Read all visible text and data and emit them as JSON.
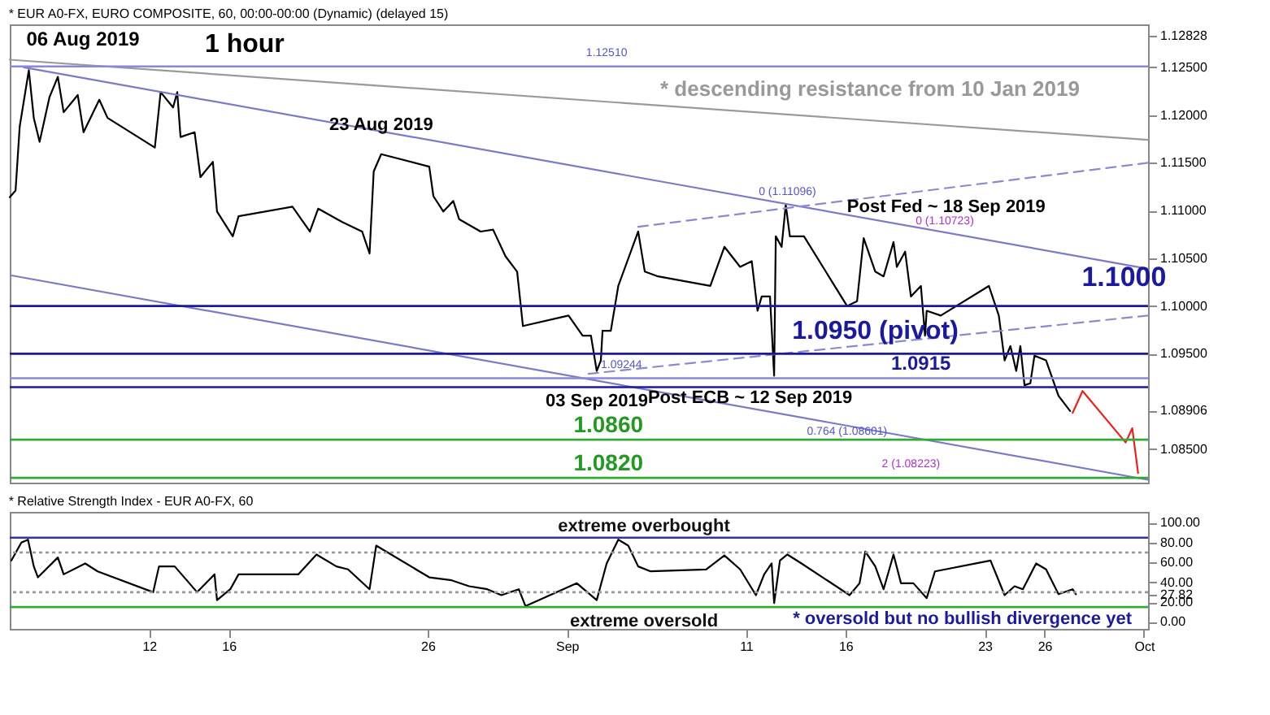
{
  "chart_data": [
    {
      "type": "line",
      "title": "* EUR A0-FX, EURO COMPOSITE, 60, 00:00-00:00 (Dynamic) (delayed 15)",
      "xlim": [
        "2019-08-05T00:00",
        "2019-10-01T05:00"
      ],
      "ylim": [
        1.0815,
        1.1295
      ],
      "yticks": [
        {
          "value": 1.085,
          "label": "1.08500"
        },
        {
          "value": 1.08906,
          "label": "1.08906"
        },
        {
          "value": 1.095,
          "label": "1.09500"
        },
        {
          "value": 1.1,
          "label": "1.10000"
        },
        {
          "value": 1.105,
          "label": "1.10500"
        },
        {
          "value": 1.11,
          "label": "1.11000"
        },
        {
          "value": 1.115,
          "label": "1.11500"
        },
        {
          "value": 1.12,
          "label": "1.12000"
        },
        {
          "value": 1.125,
          "label": "1.12500"
        },
        {
          "value": 1.12828,
          "label": "1.12828"
        }
      ],
      "tick_labels": "y",
      "marker": "none",
      "grid": false,
      "series": [
        {
          "color": "#000000",
          "line_style": "solid",
          "x": [
            "2019-08-05T00:00",
            "2019-08-05T07:00",
            "2019-08-05T12:00",
            "2019-08-05T23:00",
            "2019-08-06T05:00",
            "2019-08-06T12:00",
            "2019-08-07T00:00",
            "2019-08-07T10:00",
            "2019-08-07T17:00",
            "2019-08-08T10:00",
            "2019-08-08T17:00",
            "2019-08-09T12:00",
            "2019-08-09T22:00",
            "2019-08-12T07:00",
            "2019-08-12T14:00",
            "2019-08-13T05:00",
            "2019-08-13T10:00",
            "2019-08-13T14:00",
            "2019-08-14T07:00",
            "2019-08-14T14:00",
            "2019-08-15T05:00",
            "2019-08-15T10:00",
            "2019-08-16T05:00",
            "2019-08-16T12:00",
            "2019-08-19T05:00",
            "2019-08-20T02:00",
            "2019-08-20T12:00",
            "2019-08-21T17:00",
            "2019-08-22T17:00",
            "2019-08-23T02:00",
            "2019-08-23T07:00",
            "2019-08-23T16:00",
            "2019-08-26T02:00",
            "2019-08-26T07:00",
            "2019-08-26T19:00",
            "2019-08-27T07:00",
            "2019-08-27T14:00",
            "2019-08-28T16:00",
            "2019-08-29T07:00",
            "2019-08-29T22:00",
            "2019-08-30T12:00",
            "2019-08-30T19:00",
            "2019-09-02T02:00",
            "2019-09-02T19:00",
            "2019-09-03T05:00",
            "2019-09-03T12:00",
            "2019-09-03T17:00",
            "2019-09-03T19:00",
            "2019-09-04T05:00",
            "2019-09-04T14:00",
            "2019-09-05T14:00",
            "2019-09-05T22:00",
            "2019-09-06T14:00",
            "2019-09-09T05:00",
            "2019-09-09T22:00",
            "2019-09-10T17:00",
            "2019-09-11T07:00",
            "2019-09-11T14:00",
            "2019-09-11T19:00",
            "2019-09-12T05:00",
            "2019-09-12T10:00",
            "2019-09-12T12:00",
            "2019-09-12T19:00",
            "2019-09-13T00:00",
            "2019-09-13T05:00",
            "2019-09-13T22:00",
            "2019-09-16T02:00",
            "2019-09-16T14:00",
            "2019-09-16T22:00",
            "2019-09-17T12:00",
            "2019-09-17T22:00",
            "2019-09-18T10:00",
            "2019-09-18T14:00",
            "2019-09-19T00:00",
            "2019-09-19T07:00",
            "2019-09-19T19:00",
            "2019-09-20T00:00",
            "2019-09-20T02:00",
            "2019-09-20T19:00",
            "2019-09-23T05:00",
            "2019-09-23T17:00",
            "2019-09-24T00:00",
            "2019-09-24T07:00",
            "2019-09-24T14:00",
            "2019-09-24T19:00",
            "2019-09-25T00:00",
            "2019-09-25T07:00",
            "2019-09-25T12:00",
            "2019-09-26T02:00",
            "2019-09-26T17:00",
            "2019-09-27T07:00"
          ],
          "values": [
            1.1114,
            1.1121,
            1.1188,
            1.1247,
            1.1197,
            1.1172,
            1.1219,
            1.124,
            1.1203,
            1.1221,
            1.1182,
            1.1216,
            1.1197,
            1.1166,
            1.1224,
            1.1208,
            1.1224,
            1.1177,
            1.1182,
            1.1135,
            1.1151,
            1.1099,
            1.1073,
            1.1094,
            1.1104,
            1.1078,
            1.1102,
            1.1088,
            1.1078,
            1.1055,
            1.1141,
            1.1159,
            1.1146,
            1.1115,
            1.1099,
            1.111,
            1.1091,
            1.1078,
            1.108,
            1.1052,
            1.1036,
            1.0979,
            1.099,
            1.0969,
            1.0969,
            1.0932,
            1.0943,
            1.0974,
            1.0974,
            1.1021,
            1.1078,
            1.1036,
            1.1031,
            1.1021,
            1.1062,
            1.1041,
            1.1047,
            1.0995,
            1.101,
            1.101,
            1.0927,
            1.1073,
            1.1062,
            1.1106,
            1.1073,
            1.1073,
            1.1,
            1.1005,
            1.1071,
            1.1036,
            1.1031,
            1.1067,
            1.1041,
            1.1057,
            1.101,
            1.1021,
            1.0969,
            1.0995,
            1.099,
            1.1021,
            1.099,
            1.0943,
            1.0958,
            1.0932,
            1.0958,
            1.0917,
            1.0919,
            1.0948,
            1.0943,
            1.0906,
            1.089
          ]
        },
        {
          "color": "#e8231f",
          "line_style": "solid",
          "x": [
            "2019-09-27T10:00",
            "2019-09-27T22:00",
            "2019-09-30T02:00",
            "2019-09-30T10:00",
            "2019-09-30T17:00"
          ],
          "values": [
            1.0888,
            1.0911,
            1.0857,
            1.0872,
            1.0825
          ]
        },
        {
          "color": "#9a9a9a",
          "line_style": "solid",
          "x": [
            "2019-08-05T00:00",
            "2019-10-01T05:00"
          ],
          "values": [
            1.1258,
            1.1174
          ]
        },
        {
          "color": "#7a7ac8",
          "line_style": "solid",
          "x": [
            "2019-08-05T17:00",
            "2019-10-01T05:00"
          ],
          "values": [
            1.125,
            1.1039
          ]
        },
        {
          "color": "#7a7ac8",
          "line_style": "solid",
          "x": [
            "2019-08-05T02:00",
            "2019-10-01T05:00"
          ],
          "values": [
            1.1032,
            1.0818
          ]
        },
        {
          "color": "#8a8ad0",
          "line_style": "dashed",
          "x": [
            "2019-09-03T02:00",
            "2019-10-01T05:00"
          ],
          "values": [
            1.0929,
            1.099
          ]
        },
        {
          "color": "#8a8ad0",
          "line_style": "dashed",
          "x": [
            "2019-09-05T14:00",
            "2019-10-01T05:00"
          ],
          "values": [
            1.1083,
            1.115
          ]
        }
      ],
      "ref_lines": [
        {
          "axis": "y",
          "value": 1.1,
          "color": "#1a1aa0"
        },
        {
          "axis": "y",
          "value": 1.095,
          "color": "#1a1aa0"
        },
        {
          "axis": "y",
          "value": 1.0915,
          "color": "#1a1aa0"
        },
        {
          "axis": "y",
          "value": 1.086,
          "color": "#33aa33"
        },
        {
          "axis": "y",
          "value": 1.082,
          "color": "#33aa33"
        },
        {
          "axis": "y",
          "value": 1.1251,
          "color": "#8888dd"
        },
        {
          "axis": "y",
          "value": 1.09244,
          "color": "#8888dd"
        }
      ],
      "annotations": [
        "06 Aug 2019",
        "1 hour",
        "* descending resistance from 10 Jan 2019",
        {
          "text": "23 Aug 2019",
          "x": "2019-08-23T16:00",
          "y": 1.1174
        },
        {
          "text": "03 Sep 2019",
          "x": "2019-09-03T12:00",
          "y": 1.0914
        },
        {
          "text": "Post Fed ~ 18 Sep 2019",
          "x": "2019-09-16T02:00",
          "y": 1.109
        },
        {
          "text": "Post ECB ~ 12 Sep 2019",
          "x": "2019-09-11T05:00",
          "y": 1.0924
        },
        {
          "text": "1.1000",
          "x": "2019-09-30T00:00",
          "y": 1.1004
        },
        {
          "text": "1.0950 (pivot)",
          "x": "2019-09-17T12:00",
          "y": 1.0954
        },
        {
          "text": "1.0915",
          "x": "2019-09-19T19:00",
          "y": 1.0921
        },
        {
          "text": "1.0860",
          "x": "2019-09-04T02:00",
          "y": 1.0861
        },
        {
          "text": "1.0820",
          "x": "2019-09-04T02:00",
          "y": 1.0821
        },
        {
          "text": "0 (1.11096)",
          "x": "2019-09-13T02:00",
          "y": 1.1111
        },
        "0 (1.10723)",
        {
          "text": "0.764 (1.08601)",
          "x": "2019-09-16T02:00",
          "y": 1.086
        },
        {
          "text": "2 (1.08223)",
          "x": "2019-09-19T07:00",
          "y": 1.0826
        },
        {
          "text": "1.12510",
          "x": "2019-09-04T00:00",
          "y": 1.1255
        },
        {
          "text": "1.09244",
          "x": "2019-09-03T17:00",
          "y": 1.0928
        }
      ]
    },
    {
      "type": "line",
      "title": "* Relative Strength Index - EUR A0-FX, 60",
      "xlim": [
        "2019-08-05T00:00",
        "2019-10-01T05:00"
      ],
      "ylim": [
        -7,
        111
      ],
      "xticks": [
        {
          "value": "2019-08-12",
          "label": "12"
        },
        {
          "value": "2019-08-16",
          "label": "16"
        },
        {
          "value": "2019-08-26",
          "label": "26"
        },
        {
          "value": "2019-09-02",
          "label": "Sep"
        },
        {
          "value": "2019-09-11",
          "label": "11"
        },
        {
          "value": "2019-09-16",
          "label": "16"
        },
        {
          "value": "2019-09-23",
          "label": "23"
        },
        {
          "value": "2019-09-26",
          "label": "26"
        },
        {
          "value": "2019-10-01",
          "label": "Oct"
        }
      ],
      "yticks": [
        {
          "value": 0,
          "label": "0.00"
        },
        {
          "value": 20,
          "label": "20.00"
        },
        27.82,
        {
          "value": 40,
          "label": "40.00"
        },
        {
          "value": 60,
          "label": "60.00"
        },
        {
          "value": 80,
          "label": "80.00"
        },
        {
          "value": 100,
          "label": "100.00"
        }
      ],
      "marker": "none",
      "grid": false,
      "series": [
        {
          "color": "#000000",
          "line_style": "solid",
          "x": [
            "2019-08-05T02:00",
            "2019-08-05T14:00",
            "2019-08-05T22:00",
            "2019-08-06T05:00",
            "2019-08-06T10:00",
            "2019-08-07T10:00",
            "2019-08-07T17:00",
            "2019-08-08T19:00",
            "2019-08-09T10:00",
            "2019-08-12T05:00",
            "2019-08-12T12:00",
            "2019-08-13T07:00",
            "2019-08-14T10:00",
            "2019-08-15T07:00",
            "2019-08-15T10:00",
            "2019-08-16T02:00",
            "2019-08-16T12:00",
            "2019-08-19T12:00",
            "2019-08-20T10:00",
            "2019-08-21T10:00",
            "2019-08-22T00:00",
            "2019-08-23T02:00",
            "2019-08-23T10:00",
            "2019-08-26T02:00",
            "2019-08-27T05:00",
            "2019-08-28T02:00",
            "2019-08-29T00:00",
            "2019-08-29T17:00",
            "2019-08-30T14:00",
            "2019-08-30T22:00",
            "2019-09-02T12:00",
            "2019-09-03T12:00",
            "2019-09-04T00:00",
            "2019-09-04T14:00",
            "2019-09-05T02:00",
            "2019-09-05T14:00",
            "2019-09-06T05:00",
            "2019-09-09T00:00",
            "2019-09-09T22:00",
            "2019-09-10T17:00",
            "2019-09-11T12:00",
            "2019-09-11T22:00",
            "2019-09-12T07:00",
            "2019-09-12T10:00",
            "2019-09-12T17:00",
            "2019-09-13T02:00",
            "2019-09-13T19:00",
            "2019-09-16T05:00",
            "2019-09-16T17:00",
            "2019-09-17T00:00",
            "2019-09-17T12:00",
            "2019-09-17T22:00",
            "2019-09-18T10:00",
            "2019-09-18T19:00",
            "2019-09-19T10:00",
            "2019-09-20T02:00",
            "2019-09-20T12:00",
            "2019-09-23T07:00",
            "2019-09-24T00:00",
            "2019-09-24T12:00",
            "2019-09-24T22:00",
            "2019-09-25T14:00",
            "2019-09-26T02:00",
            "2019-09-26T17:00",
            "2019-09-27T10:00",
            "2019-09-27T14:00"
          ],
          "values": [
            62,
            80,
            83,
            56,
            45,
            65,
            48,
            59,
            51,
            30,
            56,
            56,
            30,
            48,
            22,
            33,
            48,
            48,
            68,
            56,
            53,
            33,
            77,
            45,
            42,
            36,
            33,
            27,
            33,
            16,
            39,
            22,
            59,
            83,
            77,
            56,
            51,
            53,
            67,
            53,
            27,
            48,
            59,
            19,
            62,
            68,
            59,
            27,
            39,
            71,
            56,
            33,
            68,
            39,
            39,
            24,
            51,
            62,
            27,
            36,
            33,
            59,
            53,
            28,
            33,
            28
          ]
        }
      ],
      "ref_lines": [
        {
          "axis": "y",
          "value": 85,
          "label": "extreme overbought",
          "color": "#3333aa",
          "line_style": "solid"
        },
        {
          "axis": "y",
          "value": 70,
          "color": "#999999",
          "line_style": "dotted"
        },
        {
          "axis": "y",
          "value": 30,
          "color": "#999999",
          "line_style": "dotted"
        },
        {
          "axis": "y",
          "value": 15,
          "label": "extreme oversold",
          "color": "#33aa33",
          "line_style": "solid"
        }
      ],
      "annotations": [
        "* oversold but no bullish divergence yet"
      ]
    }
  ]
}
